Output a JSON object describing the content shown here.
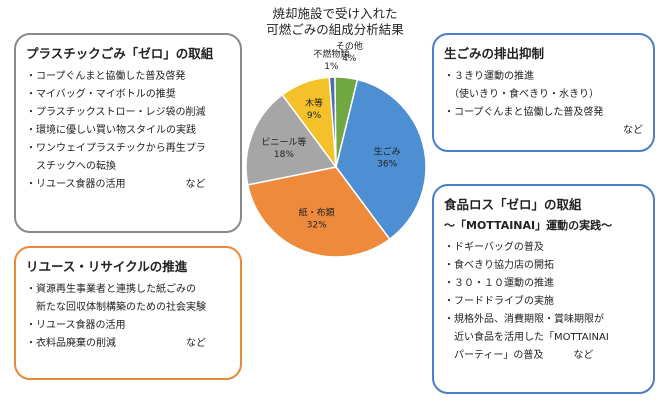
{
  "chart_data": {
    "type": "pie",
    "title_lines": [
      "焼却施設で受け入れた",
      "可燃ごみの組成分析結果"
    ],
    "slices": [
      {
        "label": "生ごみ",
        "value": 36,
        "display": "36%",
        "color": "#4e8ed3"
      },
      {
        "label": "紙・布類",
        "value": 32,
        "display": "32%",
        "color": "#ee8a3c"
      },
      {
        "label": "ビニール等",
        "value": 18,
        "display": "18%",
        "color": "#a6a6a6"
      },
      {
        "label": "木等",
        "value": 9,
        "display": "9%",
        "color": "#f5c12b"
      },
      {
        "label": "不燃物類",
        "value": 1,
        "display": "1%",
        "color": "#4a6ea8"
      },
      {
        "label": "その他",
        "value": 4,
        "display": "4%",
        "color": "#72a844"
      }
    ]
  },
  "plastic": {
    "title": "プラスチックごみ「ゼロ」の取組",
    "items": [
      "・コープぐんまと協働した普及啓発",
      "・マイバッグ・マイボトルの推奨",
      "・プラスチックストロー・レジ袋の削減",
      "・環境に優しい買い物スタイルの実践",
      "・ワンウェイプラスチックから再生プラ",
      "　スチックへの転換",
      "・リユース食器の活用　　　　　　など"
    ]
  },
  "food_waste": {
    "title": "生ごみの排出抑制",
    "items": [
      "・３きり運動の推進",
      "　（使いきり・食べきり・水きり）",
      "・コープぐんまと協働した普及啓発"
    ],
    "note": "など"
  },
  "food_loss": {
    "title": "食品ロス「ゼロ」の取組",
    "subtitle": "～「MOTTAINAI」運動の実践～",
    "items": [
      "・ドギーバッグの普及",
      "・食べきり協力店の開拓",
      "・３０・１０運動の推進",
      "・フードドライブの実施",
      "・規格外品、消費期限・賞味期限が",
      "　近い食品を活用した「MOTTAINAI",
      "　パーティー」の普及　　　など"
    ]
  },
  "reuse": {
    "title": "リユース・リサイクルの推進",
    "items": [
      "・資源再生事業者と連携した紙ごみの",
      "　新たな回収体制構築のための社会実験",
      "・リユース食器の活用",
      "・衣料品廃棄の削減　　　　　　　など"
    ]
  }
}
